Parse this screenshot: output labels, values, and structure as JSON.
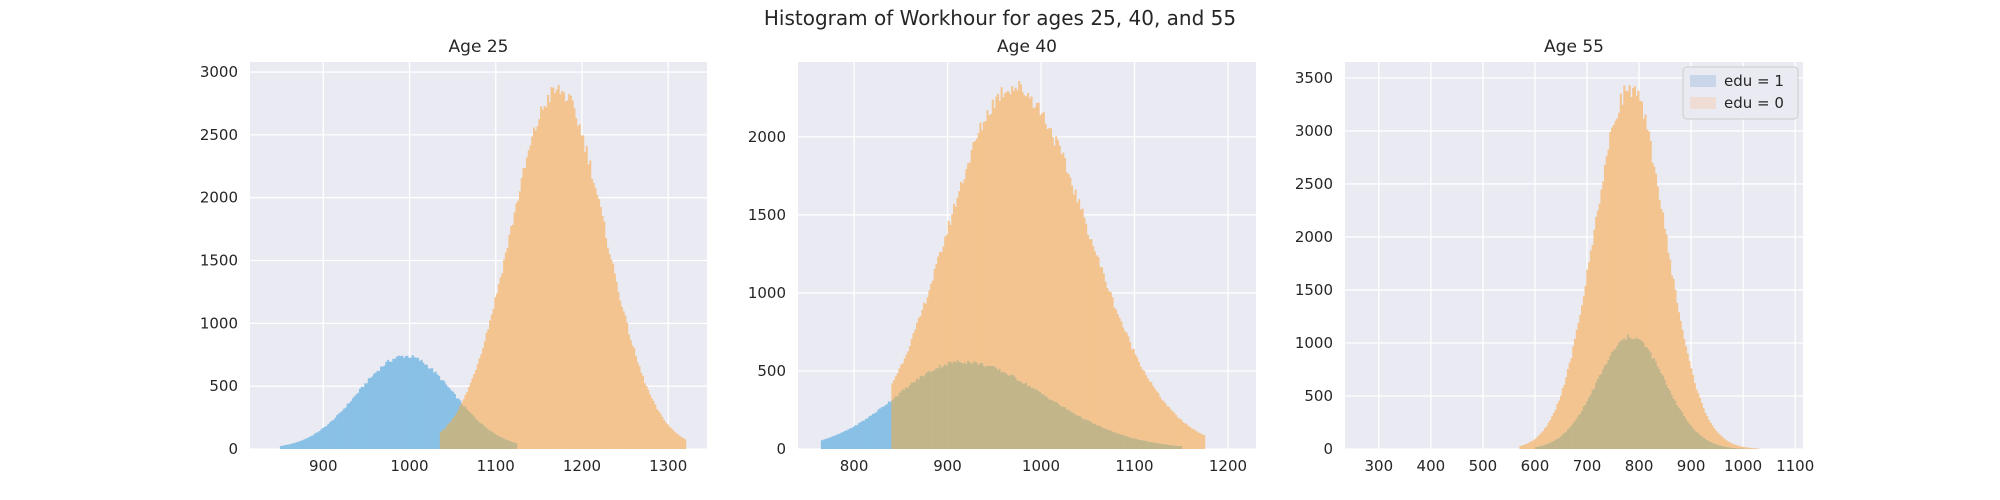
{
  "figure": {
    "title": "Histogram of Workhour for ages 25, 40, and 55",
    "background": "#ffffff",
    "axes_background": "#eaeaf2",
    "grid_color": "#ffffff"
  },
  "colors": {
    "edu1": "#89c0e6",
    "edu0": "#f3c48f",
    "overlap": "#c2b58a"
  },
  "legend": {
    "placement": "upper-right of Age 55 panel",
    "entries": [
      {
        "label": "edu = 1",
        "color": "#c9d6ea"
      },
      {
        "label": "edu = 0",
        "color": "#efdcd4"
      }
    ]
  },
  "chart_data": [
    {
      "type": "histogram",
      "title": "Age 25",
      "xlim": [
        815,
        1345
      ],
      "ylim": [
        0,
        3080
      ],
      "xticks": [
        900,
        1000,
        1100,
        1200,
        1300
      ],
      "yticks": [
        0,
        500,
        1000,
        1500,
        2000,
        2500,
        3000
      ],
      "grid": true,
      "series": [
        {
          "name": "edu = 1",
          "mean": 995,
          "sd": 55,
          "peak": 740,
          "range": [
            850,
            1125
          ]
        },
        {
          "name": "edu = 0",
          "mean": 1172,
          "sd": 55,
          "peak": 2850,
          "range": [
            1035,
            1320
          ]
        }
      ]
    },
    {
      "type": "histogram",
      "title": "Age 40",
      "xlim": [
        740,
        1230
      ],
      "ylim": [
        0,
        2480
      ],
      "xticks": [
        800,
        900,
        1000,
        1100,
        1200
      ],
      "yticks": [
        0,
        500,
        1000,
        1500,
        2000
      ],
      "grid": true,
      "series": [
        {
          "name": "edu = 1",
          "mean": 915,
          "sd": 70,
          "sd_right": 90,
          "peak": 560,
          "range": [
            765,
            1150
          ]
        },
        {
          "name": "edu = 0",
          "mean": 970,
          "sd": 70,
          "sd_right": 80,
          "peak": 2320,
          "range": [
            840,
            1175
          ]
        }
      ]
    },
    {
      "type": "histogram",
      "title": "Age 55",
      "xlim": [
        235,
        1115
      ],
      "ylim": [
        0,
        3650
      ],
      "xticks": [
        300,
        400,
        500,
        600,
        700,
        800,
        900,
        1000,
        1100
      ],
      "yticks": [
        0,
        500,
        1000,
        1500,
        2000,
        2500,
        3000,
        3500
      ],
      "grid": true,
      "series": [
        {
          "name": "edu = 1",
          "mean": 785,
          "sd": 65,
          "peak": 1060,
          "range": [
            600,
            1010
          ]
        },
        {
          "name": "edu = 0",
          "mean": 782,
          "sd": 68,
          "peak": 3400,
          "range": [
            570,
            1030
          ]
        }
      ]
    }
  ]
}
